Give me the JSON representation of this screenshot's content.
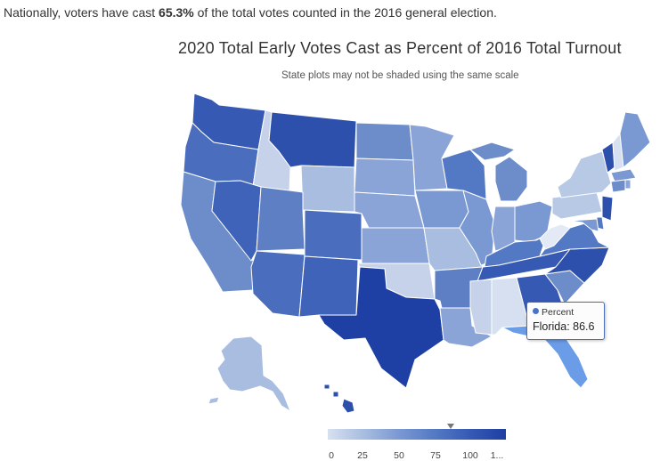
{
  "summary": {
    "prefix": "Nationally, voters have cast ",
    "value": "65.3%",
    "suffix": " of the total votes counted in the 2016 general election."
  },
  "title": "2020 Total Early Votes Cast as Percent of 2016 Total Turnout",
  "subtitle": "State plots may not be shaded using the same scale",
  "tooltip": {
    "series": "Percent",
    "state": "Florida",
    "value": "86.6",
    "text": "Florida: 86.6"
  },
  "legend": {
    "ticks": [
      "0",
      "25",
      "50",
      "75",
      "100",
      "1..."
    ],
    "marker_value": 86.6
  },
  "colors": {
    "lightest": "#d6e0f0",
    "light": "#a8bde0",
    "mid": "#7a98d2",
    "medium": "#5479c4",
    "dark": "#3659b4",
    "darkest": "#1e3fa3",
    "highlight": "#6a9ce8"
  }
}
